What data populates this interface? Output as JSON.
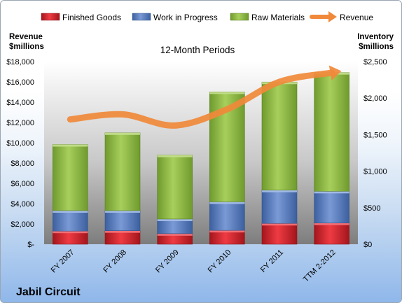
{
  "chart_data": {
    "type": "bar",
    "title": "12-Month Periods",
    "company": "Jabil Circuit",
    "categories": [
      "FY 2007",
      "FY 2008",
      "FY 2009",
      "FY 2010",
      "FY 2011",
      "TTM 2-2012"
    ],
    "series": [
      {
        "name": "Finished Goods",
        "axis": "right",
        "color": "#e8252f",
        "values": [
          180,
          185,
          145,
          190,
          285,
          290
        ]
      },
      {
        "name": "Work in Progress",
        "axis": "right",
        "color": "#6a8fce",
        "values": [
          280,
          275,
          200,
          390,
          455,
          435
        ]
      },
      {
        "name": "Raw Materials",
        "axis": "right",
        "color": "#9bc74c",
        "values": [
          905,
          1065,
          875,
          1505,
          1480,
          1625
        ]
      },
      {
        "name": "Revenue",
        "axis": "left",
        "type": "line",
        "color": "#f0893a",
        "values": [
          12300,
          12800,
          11700,
          13300,
          16000,
          16900
        ]
      }
    ],
    "left_axis": {
      "label_line1": "Revenue",
      "label_line2": "$millions",
      "min": 0,
      "max": 18000,
      "step": 2000,
      "ticks": [
        "$-",
        "$2,000",
        "$4,000",
        "$6,000",
        "$8,000",
        "$10,000",
        "$12,000",
        "$14,000",
        "$16,000",
        "$18,000"
      ]
    },
    "right_axis": {
      "label_line1": "Inventory",
      "label_line2": "$millions",
      "min": 0,
      "max": 2500,
      "step": 500,
      "ticks": [
        "$0",
        "$500",
        "$1,000",
        "$1,500",
        "$2,000",
        "$2,500"
      ]
    },
    "legend_position": "top",
    "grid": false
  }
}
